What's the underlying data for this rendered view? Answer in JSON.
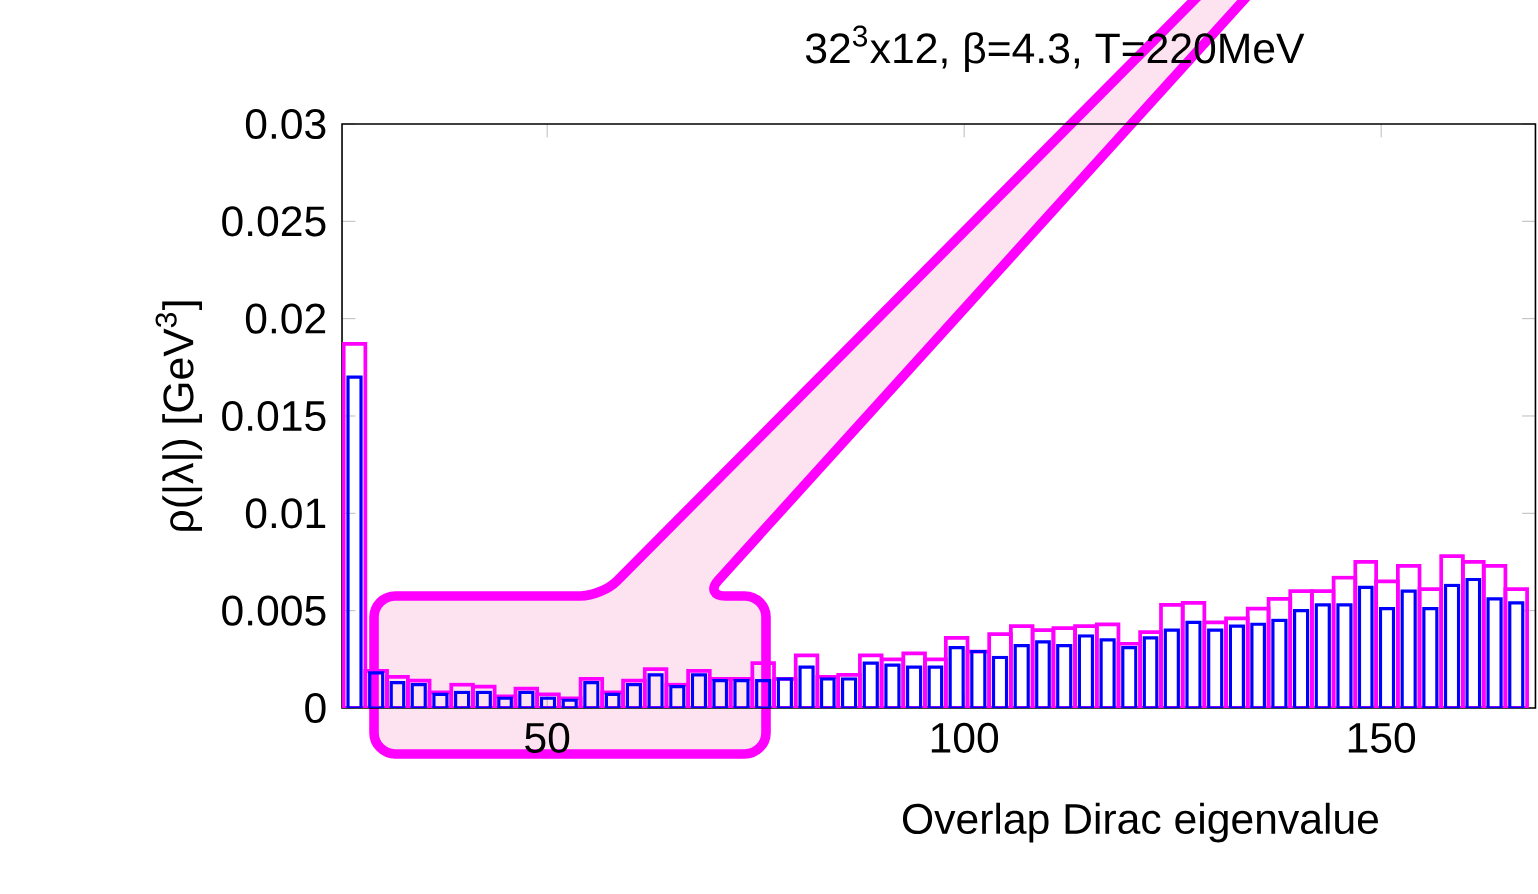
{
  "chart_data": {
    "type": "histogram",
    "title": "32$^{3}$x12, β=4.3, T=220MeV",
    "xlabel": "Overlap Dirac eigenvalue",
    "ylabel": "ρ(|λ|) [GeV$^{3}$]",
    "bins": [
      25.6,
      28.2,
      30.8,
      33.3,
      35.9,
      38.5,
      41.1,
      43.7,
      46.2,
      48.8,
      51.4,
      54.0,
      56.6,
      59.1,
      61.7,
      64.3,
      66.9,
      69.5,
      72.0,
      74.6,
      77.2,
      79.8,
      82.4,
      84.9,
      87.5,
      90.1,
      92.7,
      95.3,
      97.8,
      100.4,
      103.0,
      105.6,
      108.2,
      110.7,
      113.3,
      115.9,
      118.5,
      121.1,
      123.6,
      126.2,
      128.8,
      131.4,
      134.0,
      136.5,
      139.1,
      141.7,
      144.3,
      146.9,
      149.4,
      152.0,
      154.6,
      157.2,
      159.8,
      162.3,
      164.9,
      167.5
    ],
    "series": [
      {
        "color": "#ff00ff",
        "values": [
          0.0187,
          0.0019,
          0.0016,
          0.0014,
          0.0008,
          0.0012,
          0.0011,
          0.0006,
          0.001,
          0.0007,
          0.0005,
          0.0015,
          0.0008,
          0.0014,
          0.002,
          0.0012,
          0.0019,
          0.0015,
          0.0015,
          0.0023,
          0.0015,
          0.0027,
          0.0016,
          0.0017,
          0.0027,
          0.0025,
          0.0028,
          0.0025,
          0.0036,
          0.0029,
          0.0038,
          0.0042,
          0.004,
          0.0041,
          0.0042,
          0.0043,
          0.0033,
          0.0039,
          0.0053,
          0.0054,
          0.0044,
          0.0046,
          0.0051,
          0.0056,
          0.006,
          0.006,
          0.0067,
          0.0075,
          0.0065,
          0.0073,
          0.0061,
          0.0078,
          0.0075,
          0.0073,
          0.0061
        ]
      },
      {
        "color": "#0000ff",
        "values": [
          0.017,
          0.0018,
          0.0013,
          0.0012,
          0.0007,
          0.0008,
          0.0008,
          0.0005,
          0.0008,
          0.0005,
          0.0004,
          0.0013,
          0.0007,
          0.0012,
          0.0017,
          0.0011,
          0.0017,
          0.0014,
          0.0014,
          0.0014,
          0.0015,
          0.0021,
          0.0015,
          0.0015,
          0.0023,
          0.0022,
          0.0021,
          0.0021,
          0.0031,
          0.0029,
          0.0026,
          0.0032,
          0.0034,
          0.0032,
          0.0037,
          0.0035,
          0.0031,
          0.0036,
          0.004,
          0.0044,
          0.004,
          0.0042,
          0.0043,
          0.0045,
          0.005,
          0.0053,
          0.0053,
          0.0062,
          0.0051,
          0.006,
          0.0051,
          0.0063,
          0.0066,
          0.0056,
          0.0054
        ]
      }
    ],
    "xlim": [
      25.4,
      168.5
    ],
    "ylim": [
      0,
      0.03
    ],
    "xticks": [
      50,
      100,
      150
    ],
    "yticks": [
      0,
      0.005,
      0.01,
      0.015,
      0.02,
      0.025,
      0.03
    ]
  }
}
